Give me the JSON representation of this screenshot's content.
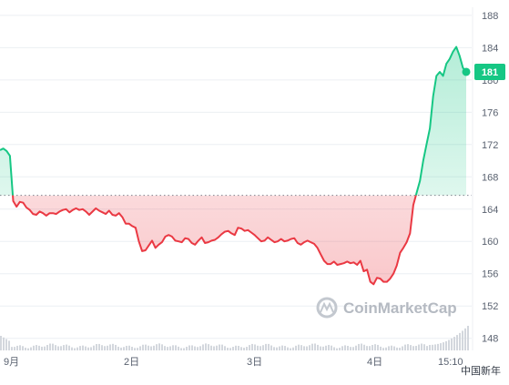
{
  "chart_data": {
    "type": "area",
    "x_tick_labels": [
      "9月",
      "2日",
      "3日",
      "4日",
      "15:10"
    ],
    "y_ticks": [
      148,
      152,
      156,
      160,
      164,
      168,
      172,
      176,
      180,
      184,
      188
    ],
    "ylim": [
      146.5,
      189
    ],
    "baseline": 165.7,
    "current_value_label": "181",
    "watermark": "CoinMarketCap",
    "corner_label": "中国新年",
    "grid": true,
    "colors": {
      "up": "#16c784",
      "down": "#ea3943",
      "grid": "#eceff3",
      "axis_text": "#5a6270"
    },
    "series": [
      {
        "values": [
          171.3,
          171.5,
          171.2,
          170.6,
          165.0,
          164.3,
          164.9,
          164.8,
          164.2,
          163.9,
          163.4,
          163.3,
          163.7,
          163.5,
          163.2,
          163.5,
          163.5,
          163.4,
          163.7,
          163.9,
          164.0,
          163.6,
          163.9,
          164.1,
          163.9,
          164.0,
          163.7,
          163.3,
          163.7,
          164.1,
          163.8,
          163.6,
          163.4,
          163.8,
          163.3,
          163.2,
          163.5,
          163.0,
          162.2,
          162.2,
          161.9,
          161.7,
          160.0,
          158.8,
          158.9,
          159.5,
          160.1,
          159.2,
          159.6,
          159.9,
          160.6,
          160.8,
          160.6,
          160.1,
          160.0,
          159.9,
          160.4,
          160.3,
          159.8,
          159.6,
          160.1,
          160.5,
          159.8,
          159.9,
          160.1,
          160.2,
          160.5,
          160.9,
          161.2,
          161.3,
          161.0,
          160.8,
          161.7,
          161.6,
          161.3,
          161.4,
          161.1,
          160.8,
          160.4,
          160.0,
          160.1,
          160.5,
          160.2,
          159.9,
          160.0,
          160.3,
          160.0,
          160.1,
          160.3,
          160.4,
          159.8,
          159.6,
          159.9,
          160.1,
          159.9,
          159.7,
          159.2,
          158.4,
          157.6,
          157.2,
          157.2,
          157.5,
          157.1,
          157.2,
          157.3,
          157.5,
          157.3,
          157.4,
          157.1,
          157.6,
          156.3,
          156.5,
          155.0,
          154.7,
          155.5,
          155.4,
          155.0,
          155.0,
          155.4,
          156.0,
          157.0,
          158.6,
          159.2,
          159.9,
          161.0,
          164.5,
          166.0,
          167.5,
          170.0,
          172.0,
          174.0,
          178.0,
          180.5,
          181.0,
          180.5,
          182.0,
          182.6,
          183.5,
          184.1,
          183.0,
          181.5,
          181.0
        ]
      }
    ]
  }
}
